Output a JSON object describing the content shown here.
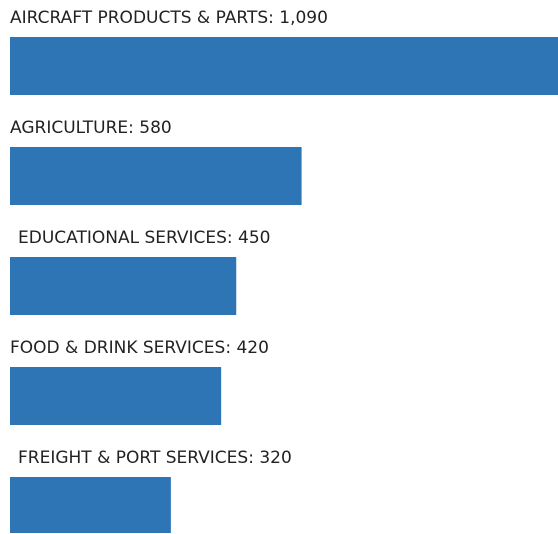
{
  "chart_data": {
    "type": "hbar",
    "values": [
      1090,
      580,
      450,
      420,
      320
    ],
    "value_labels": [
      "AIRCRAFT PRODUCTS & PARTS: 1,090",
      "AGRICULTURE: 580",
      "EDUCATIONAL SERVICES: 450",
      "FOOD & DRINK SERVICES: 420",
      "FREIGHT & PORT SERVICES: 320"
    ],
    "color": "#2e75b6",
    "xlim": [
      0,
      1090
    ]
  }
}
